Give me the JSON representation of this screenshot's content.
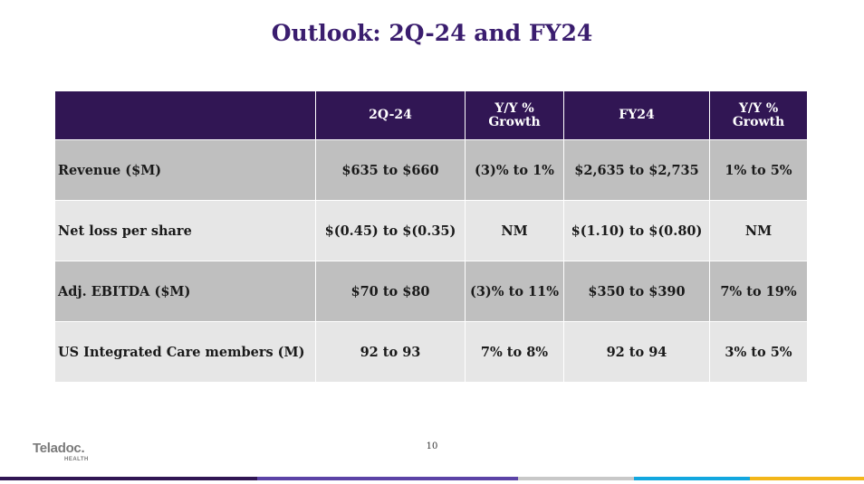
{
  "slide": {
    "title": "Outlook: 2Q-24 and FY24",
    "page_number": "10"
  },
  "table": {
    "headers": [
      "",
      "2Q-24",
      "Y/Y %\nGrowth",
      "FY24",
      "Y/Y %\nGrowth"
    ],
    "header_lines": {
      "yy1_line1": "Y/Y %",
      "yy1_line2": "Growth",
      "yy2_line1": "Y/Y %",
      "yy2_line2": "Growth"
    },
    "rows": [
      {
        "label": "Revenue ($M)",
        "q2": "$635 to $660",
        "q2_yy": "(3)% to 1%",
        "fy": "$2,635 to $2,735",
        "fy_yy": "1% to 5%"
      },
      {
        "label": "Net loss per share",
        "q2": "$(0.45) to $(0.35)",
        "q2_yy": "NM",
        "fy": "$(1.10) to $(0.80)",
        "fy_yy": "NM"
      },
      {
        "label": "Adj. EBITDA ($M)",
        "q2": "$70 to $80",
        "q2_yy": "(3)% to 11%",
        "fy": "$350 to $390",
        "fy_yy": "7% to 19%"
      },
      {
        "label": "US Integrated Care members (M)",
        "q2": "92 to 93",
        "q2_yy": "7% to 8%",
        "fy": "92 to 94",
        "fy_yy": "3% to 5%"
      }
    ]
  },
  "logo": {
    "name": "Teladoc",
    "suffix": ".",
    "sub": "HEALTH"
  },
  "colors": {
    "title": "#3a1d6e",
    "header_bg": "#311654",
    "row_dark": "#bfbfbf",
    "row_light": "#e6e6e6",
    "footer_bar": [
      "#311654",
      "#5b43a6",
      "#c8c8c8",
      "#12a7df",
      "#f3b619"
    ]
  }
}
